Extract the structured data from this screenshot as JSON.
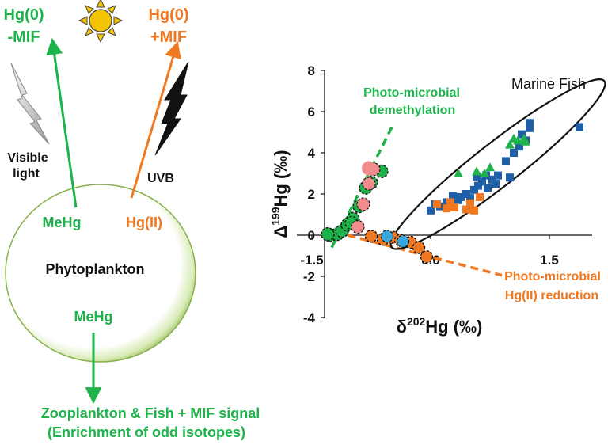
{
  "diagram": {
    "top_left_label": [
      "Hg(0)",
      "-MIF"
    ],
    "top_right_label": [
      "Hg(0)",
      "+MIF"
    ],
    "visible_light_label": [
      "Visible",
      "light"
    ],
    "uvb_label": "UVB",
    "cell_label": "Phytoplankton",
    "mehg_label_upper": "MeHg",
    "hgII_label": "Hg(II)",
    "mehg_label_lower": "MeHg",
    "bottom_line_1": "Zooplankton & Fish + MIF signal",
    "bottom_line_2": "(Enrichment of odd isotopes)",
    "colors": {
      "green": "#1db34a",
      "orange": "#f07820",
      "blue": "#1f5fa8",
      "pink": "#f08c8c",
      "cyan": "#3aa8e0",
      "sun": "#f5c400"
    }
  },
  "chart_data": {
    "type": "scatter",
    "xlabel_main": "δ",
    "xlabel_sup": "202",
    "xlabel_rest": "Hg (‰)",
    "ylabel_main": "Δ",
    "ylabel_sup": "199",
    "ylabel_rest": "Hg (‰)",
    "xlim": [
      -1.9,
      2.0
    ],
    "ylim": [
      -4,
      8
    ],
    "x_ticks": [
      -1.5,
      0.0,
      1.5
    ],
    "x_tick_labels": [
      "-1.5",
      "0.0",
      "1.5"
    ],
    "y_ticks": [
      -4,
      -2,
      0,
      2,
      4,
      6,
      8
    ],
    "y_tick_labels": [
      "-4",
      "-2",
      "0",
      "2",
      "4",
      "6",
      "8"
    ],
    "annotations": {
      "demethylation": [
        "Photo-microbial",
        "demethylation"
      ],
      "reduction": [
        "Photo-microbial",
        "Hg(II) reduction"
      ],
      "marine_fish": "Marine Fish"
    },
    "demethylation_line": [
      [
        -1.25,
        -0.6
      ],
      [
        -0.47,
        5.4
      ]
    ],
    "reduction_line": [
      [
        -1.2,
        0.15
      ],
      [
        0.9,
        -1.95
      ]
    ],
    "fish_ellipse": {
      "cx": 0.85,
      "cy": 3.45,
      "rx": 1.1,
      "ry": 0.95,
      "angle_deg": -38
    },
    "series": [
      {
        "marker": "circle-dashed-green",
        "points": [
          [
            -1.27,
            0.0
          ],
          [
            -1.18,
            0.05
          ],
          [
            -1.12,
            0.2
          ],
          [
            -1.05,
            0.5
          ],
          [
            -0.98,
            0.8
          ],
          [
            -0.9,
            1.4
          ],
          [
            -0.82,
            2.3
          ],
          [
            -0.75,
            2.55
          ],
          [
            -0.62,
            3.1
          ],
          [
            -1.0,
            0.6
          ],
          [
            -1.3,
            0.05
          ]
        ]
      },
      {
        "marker": "circle-pink",
        "points": [
          [
            -0.92,
            0.4
          ],
          [
            -0.85,
            1.5
          ],
          [
            -0.78,
            2.5
          ],
          [
            -0.72,
            3.2
          ]
        ]
      },
      {
        "marker": "circle-dashed-orange",
        "points": [
          [
            -0.75,
            -0.05
          ],
          [
            -0.6,
            -0.2
          ],
          [
            -0.48,
            -0.1
          ],
          [
            -0.38,
            -0.25
          ],
          [
            -0.25,
            -0.35
          ],
          [
            -0.15,
            -0.6
          ],
          [
            -0.05,
            -1.05
          ]
        ]
      },
      {
        "marker": "circle-cyan",
        "points": [
          [
            -0.55,
            -0.05
          ],
          [
            -0.35,
            -0.3
          ]
        ]
      },
      {
        "marker": "square-blue",
        "points": [
          [
            0.0,
            1.2
          ],
          [
            0.05,
            1.5
          ],
          [
            0.12,
            1.4
          ],
          [
            0.2,
            1.6
          ],
          [
            0.28,
            1.9
          ],
          [
            0.35,
            1.7
          ],
          [
            0.45,
            2.0
          ],
          [
            0.5,
            1.8
          ],
          [
            0.55,
            2.2
          ],
          [
            0.6,
            2.4
          ],
          [
            0.65,
            2.6
          ],
          [
            0.7,
            2.9
          ],
          [
            0.72,
            2.3
          ],
          [
            0.78,
            2.7
          ],
          [
            0.82,
            2.5
          ],
          [
            0.85,
            2.9
          ],
          [
            0.95,
            3.6
          ],
          [
            1.0,
            2.8
          ],
          [
            1.05,
            4.0
          ],
          [
            1.12,
            4.3
          ],
          [
            1.2,
            4.6
          ],
          [
            1.25,
            5.2
          ],
          [
            1.25,
            5.45
          ],
          [
            1.15,
            4.9
          ],
          [
            1.88,
            5.25
          ],
          [
            0.58,
            2.85
          ],
          [
            0.38,
            1.85
          ]
        ]
      },
      {
        "marker": "square-orange",
        "points": [
          [
            0.08,
            1.5
          ],
          [
            0.2,
            1.3
          ],
          [
            0.3,
            1.35
          ],
          [
            0.45,
            1.25
          ],
          [
            0.55,
            1.2
          ],
          [
            0.62,
            1.85
          ],
          [
            0.5,
            1.55
          ],
          [
            0.25,
            1.6
          ]
        ]
      },
      {
        "marker": "triangle-green",
        "points": [
          [
            0.35,
            3.0
          ],
          [
            0.58,
            3.1
          ],
          [
            0.75,
            3.3
          ],
          [
            1.0,
            4.4
          ],
          [
            1.05,
            4.7
          ],
          [
            1.1,
            4.6
          ],
          [
            1.18,
            4.7
          ],
          [
            1.2,
            4.55
          ],
          [
            0.68,
            3.0
          ]
        ]
      }
    ]
  }
}
